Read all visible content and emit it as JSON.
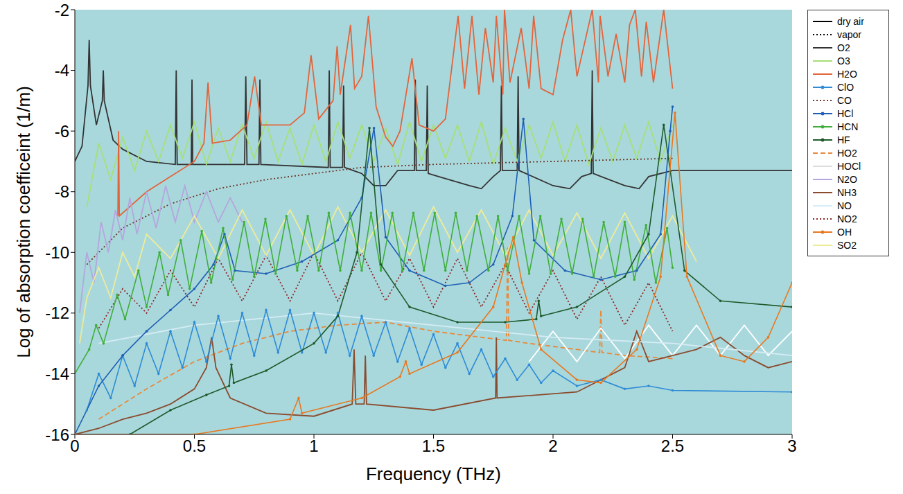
{
  "chart_data": {
    "type": "line",
    "x_label": "Frequency (THz)",
    "y_label": "Log of absorption coefficeint (1/m)",
    "xlim": [
      0,
      3
    ],
    "xticks": [
      0,
      0.5,
      1,
      1.5,
      2,
      2.5,
      3
    ],
    "ylim": [
      -16,
      -2
    ],
    "yticks": [
      -16,
      -14,
      -12,
      -10,
      -8,
      -6,
      -4,
      -2
    ],
    "grid": false,
    "legend": "right",
    "style_legend": [
      {
        "name": "dry air",
        "line_style": "solid"
      },
      {
        "name": "vapor",
        "line_style": "dotted"
      }
    ],
    "series": [
      {
        "name": "O2",
        "color": "#333333",
        "line_style": "solid",
        "x": [
          0,
          0.03,
          0.055,
          0.06,
          0.065,
          0.09,
          0.115,
          0.119,
          0.123,
          0.16,
          0.2,
          0.3,
          0.42,
          0.424,
          0.428,
          0.487,
          0.49,
          0.493,
          0.71,
          0.715,
          0.72,
          0.77,
          0.774,
          0.778,
          1.06,
          1.064,
          1.068,
          1.12,
          1.124,
          1.128,
          1.2,
          1.25,
          1.3,
          1.35,
          1.42,
          1.424,
          1.428,
          1.47,
          1.474,
          1.478,
          1.65,
          1.7,
          1.75,
          1.78,
          1.784,
          1.788,
          1.85,
          1.854,
          1.858,
          2.0,
          2.07,
          2.12,
          2.16,
          2.164,
          2.168,
          2.3,
          2.36,
          2.4,
          2.5,
          2.6,
          3
        ],
        "values": [
          -7,
          -6.5,
          -4.5,
          -3,
          -4.5,
          -5.8,
          -5,
          -4,
          -5,
          -6.3,
          -6.6,
          -7,
          -7.1,
          -4,
          -7.1,
          -7.1,
          -4.3,
          -7.1,
          -7.1,
          -4.2,
          -7.1,
          -7.1,
          -4.3,
          -7.1,
          -7.2,
          -4,
          -7.2,
          -7.2,
          -4.5,
          -7.2,
          -7.4,
          -7.8,
          -7.8,
          -7.3,
          -7.3,
          -4.3,
          -7.3,
          -7.3,
          -4.5,
          -7.4,
          -7.8,
          -7.9,
          -7.5,
          -7.3,
          -4.5,
          -7.3,
          -7.3,
          -4.2,
          -7.3,
          -7.8,
          -7.9,
          -7.5,
          -7.4,
          -4,
          -7.4,
          -7.8,
          -7.9,
          -7.5,
          -7.3,
          -7.3,
          -7.3
        ]
      },
      {
        "name": "O3",
        "color": "#a6df78",
        "line_style": "solid",
        "x": [
          0.05,
          0.1,
          0.15,
          0.2,
          0.25,
          0.3,
          0.35,
          0.4,
          0.45,
          0.5,
          0.55,
          0.6,
          0.65,
          0.7,
          0.75,
          0.8,
          0.85,
          0.9,
          0.95,
          1,
          1.05,
          1.1,
          1.15,
          1.2,
          1.25,
          1.3,
          1.35,
          1.4,
          1.45,
          1.5,
          1.55,
          1.6,
          1.65,
          1.7,
          1.75,
          1.8,
          1.85,
          1.9,
          1.95,
          2,
          2.05,
          2.1,
          2.15,
          2.2,
          2.25,
          2.3,
          2.35,
          2.4,
          2.45,
          2.5
        ],
        "values": [
          -8.5,
          -6.4,
          -7.6,
          -6.2,
          -7.3,
          -6,
          -7,
          -5.8,
          -6.9,
          -5.7,
          -7.1,
          -5.9,
          -7,
          -5.8,
          -6.9,
          -5.7,
          -7,
          -5.9,
          -7.1,
          -5.8,
          -7,
          -5.7,
          -6.9,
          -5.8,
          -7,
          -5.9,
          -7.1,
          -5.7,
          -7,
          -5.8,
          -6.9,
          -5.8,
          -7,
          -5.7,
          -7.1,
          -5.9,
          -7,
          -5.8,
          -6.9,
          -5.7,
          -7,
          -5.8,
          -7.1,
          -5.9,
          -7,
          -5.8,
          -6.9,
          -5.7,
          -7,
          -5.8
        ]
      },
      {
        "name": "H2O",
        "color": "#e2643c",
        "line_style": "solid",
        "x": [
          0.18,
          0.183,
          0.186,
          0.3,
          0.4,
          0.5,
          0.54,
          0.557,
          0.575,
          0.65,
          0.72,
          0.752,
          0.78,
          0.9,
          0.96,
          0.988,
          1.02,
          1.08,
          1.097,
          1.11,
          1.153,
          1.17,
          1.2,
          1.228,
          1.26,
          1.3,
          1.33,
          1.36,
          1.41,
          1.44,
          1.5,
          1.55,
          1.603,
          1.63,
          1.661,
          1.69,
          1.717,
          1.75,
          1.763,
          1.79,
          1.797,
          1.82,
          1.867,
          1.9,
          1.919,
          1.95,
          2,
          2.04,
          2.074,
          2.1,
          2.164,
          2.19,
          2.197,
          2.23,
          2.264,
          2.3,
          2.32,
          2.344,
          2.37,
          2.39,
          2.42,
          2.463,
          2.5
        ],
        "values": [
          -8.8,
          -6,
          -8.8,
          -8,
          -7.5,
          -7,
          -6.4,
          -4.4,
          -6.4,
          -6.3,
          -5.8,
          -4.2,
          -5.8,
          -5.8,
          -5.4,
          -3.5,
          -5.6,
          -5,
          -3.2,
          -4.8,
          -2.5,
          -4.6,
          -4.2,
          -2.2,
          -5.2,
          -6.2,
          -6.5,
          -6,
          -3.6,
          -5.8,
          -6,
          -5.6,
          -2.2,
          -4.6,
          -2.2,
          -4.8,
          -2.6,
          -4.4,
          -2.2,
          -4.8,
          -2,
          -4.4,
          -2.6,
          -4.6,
          -2.2,
          -4.6,
          -4.8,
          -3,
          -2,
          -4.2,
          -2,
          -4.4,
          -2.2,
          -4.2,
          -2.8,
          -4.4,
          -2.5,
          -2,
          -4.2,
          -2.4,
          -4.4,
          -2,
          -4.6
        ]
      },
      {
        "name": "ClO",
        "color": "#2e8bd6",
        "line_style": "solid",
        "marker": "circle",
        "x": [
          0.05,
          0.1,
          0.15,
          0.2,
          0.25,
          0.3,
          0.35,
          0.4,
          0.45,
          0.5,
          0.55,
          0.6,
          0.65,
          0.7,
          0.75,
          0.8,
          0.85,
          0.9,
          0.95,
          1,
          1.05,
          1.1,
          1.15,
          1.2,
          1.25,
          1.3,
          1.35,
          1.4,
          1.45,
          1.5,
          1.55,
          1.6,
          1.65,
          1.7,
          1.75,
          1.8,
          1.85,
          1.9,
          1.95,
          2,
          2.1,
          2.2,
          2.3,
          2.4,
          2.5,
          3
        ],
        "values": [
          -15.2,
          -14,
          -14.8,
          -13.4,
          -14.4,
          -13,
          -14,
          -12.6,
          -13.8,
          -12.3,
          -13.6,
          -12.1,
          -13.5,
          -12,
          -13.4,
          -11.9,
          -13.3,
          -11.9,
          -13.3,
          -12,
          -13.3,
          -12,
          -13.4,
          -12.1,
          -13.4,
          -12.3,
          -13.6,
          -12.5,
          -13.7,
          -12.7,
          -13.8,
          -13,
          -14,
          -13.2,
          -14.1,
          -13.5,
          -14.2,
          -13.7,
          -14.3,
          -13.9,
          -14.4,
          -14.2,
          -14.5,
          -14.4,
          -14.55,
          -14.6
        ]
      },
      {
        "name": "CO",
        "color": "#6b3a2a",
        "line_style": "dotted",
        "x": [
          0.05,
          0.2,
          0.4,
          0.6,
          0.8,
          1,
          1.2,
          1.5,
          2,
          2.5
        ],
        "values": [
          -10.4,
          -9.2,
          -8.4,
          -7.9,
          -7.6,
          -7.4,
          -7.2,
          -7.1,
          -7,
          -6.9
        ]
      },
      {
        "name": "HCl",
        "color": "#1f5fb4",
        "line_style": "solid",
        "marker": "circle",
        "x": [
          0,
          0.1,
          0.2,
          0.3,
          0.4,
          0.5,
          0.58,
          0.626,
          0.67,
          0.8,
          0.95,
          1.1,
          1.2,
          1.251,
          1.3,
          1.4,
          1.55,
          1.65,
          1.75,
          1.83,
          1.876,
          1.92,
          2.05,
          2.2,
          2.35,
          2.45,
          2.49,
          2.5
        ],
        "values": [
          -16,
          -14.4,
          -13.4,
          -12.6,
          -11.9,
          -11.2,
          -10.4,
          -9.4,
          -10.6,
          -10.7,
          -10.3,
          -9.6,
          -8.2,
          -5.9,
          -9.5,
          -10.6,
          -11.1,
          -11,
          -10.4,
          -8.8,
          -5.6,
          -9.6,
          -10.6,
          -10.9,
          -10.6,
          -9.4,
          -6,
          -5.2
        ]
      },
      {
        "name": "HCN",
        "color": "#3fae3a",
        "line_style": "solid",
        "marker": "circle",
        "x": [
          0,
          0.06,
          0.089,
          0.12,
          0.177,
          0.21,
          0.266,
          0.3,
          0.354,
          0.39,
          0.443,
          0.48,
          0.531,
          0.57,
          0.62,
          0.66,
          0.708,
          0.75,
          0.797,
          0.84,
          0.885,
          0.93,
          0.974,
          1.02,
          1.062,
          1.11,
          1.151,
          1.2,
          1.239,
          1.28,
          1.328,
          1.37,
          1.416,
          1.46,
          1.505,
          1.55,
          1.593,
          1.64,
          1.682,
          1.73,
          1.77,
          1.81,
          1.858,
          1.9,
          1.947,
          1.99,
          2.035,
          2.08,
          2.124,
          2.17,
          2.212,
          2.26,
          2.3,
          2.34,
          2.389,
          2.43,
          2.477,
          2.5
        ],
        "values": [
          -14,
          -13.2,
          -12.4,
          -13,
          -11.4,
          -12.2,
          -10.6,
          -11.8,
          -10,
          -11.4,
          -9.6,
          -11.2,
          -9.3,
          -11,
          -9.2,
          -10.9,
          -9,
          -10.8,
          -8.9,
          -10.7,
          -8.8,
          -10.6,
          -8.8,
          -10.6,
          -8.7,
          -10.6,
          -8.7,
          -10.6,
          -8.7,
          -10.6,
          -8.7,
          -10.6,
          -8.7,
          -10.6,
          -8.7,
          -10.6,
          -8.7,
          -10.6,
          -8.8,
          -10.6,
          -8.8,
          -10.6,
          -8.8,
          -10.7,
          -8.8,
          -10.7,
          -8.9,
          -10.7,
          -8.9,
          -10.8,
          -9,
          -10.8,
          -9,
          -10.9,
          -9.1,
          -11,
          -9.2,
          -10.5
        ]
      },
      {
        "name": "HF",
        "color": "#1d5a2c",
        "line_style": "solid",
        "marker": "circle",
        "x": [
          0.23,
          0.4,
          0.55,
          0.645,
          0.655,
          0.665,
          0.8,
          1,
          1.1,
          1.18,
          1.232,
          1.28,
          1.4,
          1.6,
          1.8,
          1.93,
          1.94,
          1.95,
          2.1,
          2.3,
          2.4,
          2.463,
          2.55,
          2.7,
          3
        ],
        "values": [
          -16,
          -15.2,
          -14.7,
          -14.4,
          -13.7,
          -14.3,
          -13.9,
          -13,
          -12.1,
          -10,
          -5.9,
          -10.4,
          -11.8,
          -12.3,
          -12.3,
          -12.2,
          -11.6,
          -12.1,
          -11.8,
          -10.8,
          -9.4,
          -5.8,
          -10.6,
          -11.6,
          -11.8
        ]
      },
      {
        "name": "HO2",
        "color": "#e8893a",
        "line_style": "dashed",
        "x": [
          0.1,
          0.3,
          0.5,
          0.7,
          0.9,
          1.1,
          1.3,
          1.5,
          1.7,
          1.805,
          1.81,
          1.815,
          1.9,
          2.1,
          2.195,
          2.2,
          2.205,
          2.3,
          2.5
        ],
        "values": [
          -15.5,
          -14.5,
          -13.6,
          -13,
          -12.6,
          -12.4,
          -12.3,
          -12.6,
          -12.8,
          -12.9,
          -9.8,
          -12.9,
          -13,
          -13.2,
          -13.3,
          -11.9,
          -13.3,
          -13.4,
          -13.5
        ]
      },
      {
        "name": "HOCl",
        "color": "#ffffff",
        "line_style": "solid",
        "x": [
          1.9,
          2,
          2.1,
          2.2,
          2.3,
          2.4,
          2.5,
          2.6,
          2.7,
          2.8,
          2.9,
          3
        ],
        "values": [
          -13.6,
          -12.6,
          -13.6,
          -12.5,
          -13.5,
          -12.4,
          -13.4,
          -12.4,
          -13.4,
          -12.4,
          -13.4,
          -12.6
        ]
      },
      {
        "name": "N2O",
        "color": "#b4a6de",
        "line_style": "solid",
        "x": [
          0.02,
          0.05,
          0.08,
          0.11,
          0.14,
          0.17,
          0.2,
          0.23,
          0.26,
          0.3,
          0.34,
          0.38,
          0.42,
          0.46,
          0.5,
          0.55,
          0.6,
          0.65,
          0.7
        ],
        "values": [
          -12,
          -10,
          -11,
          -9,
          -10,
          -8.6,
          -9.6,
          -8.2,
          -9.4,
          -8,
          -9.2,
          -7.8,
          -9,
          -7.8,
          -9,
          -8,
          -9,
          -8.2,
          -9
        ]
      },
      {
        "name": "NH3",
        "color": "#8a4b2e",
        "line_style": "solid",
        "x": [
          0,
          0.1,
          0.2,
          0.3,
          0.4,
          0.5,
          0.55,
          0.572,
          0.59,
          0.65,
          0.8,
          1,
          1.16,
          1.168,
          1.175,
          1.21,
          1.215,
          1.22,
          1.5,
          1.76,
          1.763,
          1.766,
          2.1,
          2.2,
          2.3,
          2.35,
          2.4,
          2.5,
          2.6,
          2.7,
          2.8,
          2.9,
          3
        ],
        "values": [
          -16,
          -15.8,
          -15.5,
          -15.3,
          -15,
          -14.5,
          -13.8,
          -12.8,
          -13.8,
          -14.8,
          -15.3,
          -15.4,
          -15,
          -13.2,
          -15,
          -15,
          -13.4,
          -15,
          -15.2,
          -14.8,
          -12.8,
          -14.8,
          -14.6,
          -14.2,
          -13.8,
          -12.6,
          -13.6,
          -13.4,
          -13.2,
          -12.8,
          -13.4,
          -13.8,
          -13.6
        ]
      },
      {
        "name": "NO",
        "color": "#d6ecf4",
        "line_style": "solid",
        "x": [
          0.1,
          0.5,
          1,
          1.5,
          2,
          2.5,
          3
        ],
        "values": [
          -13,
          -12.4,
          -12,
          -12.4,
          -12.8,
          -13,
          -13.4
        ]
      },
      {
        "name": "NO2",
        "color": "#8b2323",
        "line_style": "dotted",
        "x": [
          0.1,
          0.2,
          0.3,
          0.4,
          0.5,
          0.6,
          0.7,
          0.8,
          0.9,
          1,
          1.1,
          1.2,
          1.3,
          1.4,
          1.5,
          1.6,
          1.7,
          1.8,
          1.9,
          2,
          2.1,
          2.2,
          2.3,
          2.4,
          2.5
        ],
        "values": [
          -12.5,
          -11.2,
          -12,
          -10.6,
          -11.8,
          -10.2,
          -11.6,
          -10.1,
          -11.6,
          -10,
          -11.6,
          -10,
          -11.6,
          -10.2,
          -11.8,
          -10.2,
          -11.8,
          -10.4,
          -12,
          -10.6,
          -12.2,
          -10.8,
          -12.4,
          -11,
          -12.6
        ]
      },
      {
        "name": "OH",
        "color": "#e8781e",
        "line_style": "solid",
        "marker": "circle",
        "x": [
          0,
          0.5,
          0.9,
          0.936,
          0.95,
          1.2,
          1.36,
          1.384,
          1.4,
          1.6,
          1.75,
          1.8,
          1.834,
          1.87,
          1.95,
          2.1,
          2.2,
          2.35,
          2.45,
          2.51,
          2.56,
          2.7,
          2.8,
          2.9,
          3
        ],
        "values": [
          -16,
          -16,
          -15.5,
          -14.8,
          -15.3,
          -14.8,
          -14.1,
          -13.6,
          -14,
          -13.3,
          -11.8,
          -10.4,
          -9.5,
          -11,
          -13.2,
          -14.2,
          -14.3,
          -13.2,
          -10.8,
          -5.4,
          -10.8,
          -13.4,
          -13.6,
          -12.8,
          -11
        ]
      },
      {
        "name": "SO2",
        "color": "#eeec98",
        "line_style": "solid",
        "x": [
          0.02,
          0.05,
          0.1,
          0.15,
          0.2,
          0.25,
          0.3,
          0.4,
          0.5,
          0.6,
          0.7,
          0.8,
          0.9,
          1,
          1.1,
          1.2,
          1.3,
          1.4,
          1.5,
          1.6,
          1.7,
          1.8,
          1.9,
          2,
          2.1,
          2.2,
          2.3,
          2.4,
          2.5,
          2.6
        ],
        "values": [
          -13,
          -11.5,
          -10.5,
          -11.5,
          -10,
          -10.8,
          -9.4,
          -10.2,
          -8.8,
          -10.2,
          -8.6,
          -10.1,
          -8.6,
          -10.1,
          -8.5,
          -10,
          -8.6,
          -10.1,
          -8.5,
          -10,
          -8.6,
          -10.1,
          -8.6,
          -10.1,
          -8.7,
          -10.2,
          -8.7,
          -10.2,
          -8.8,
          -10.3
        ]
      }
    ]
  }
}
